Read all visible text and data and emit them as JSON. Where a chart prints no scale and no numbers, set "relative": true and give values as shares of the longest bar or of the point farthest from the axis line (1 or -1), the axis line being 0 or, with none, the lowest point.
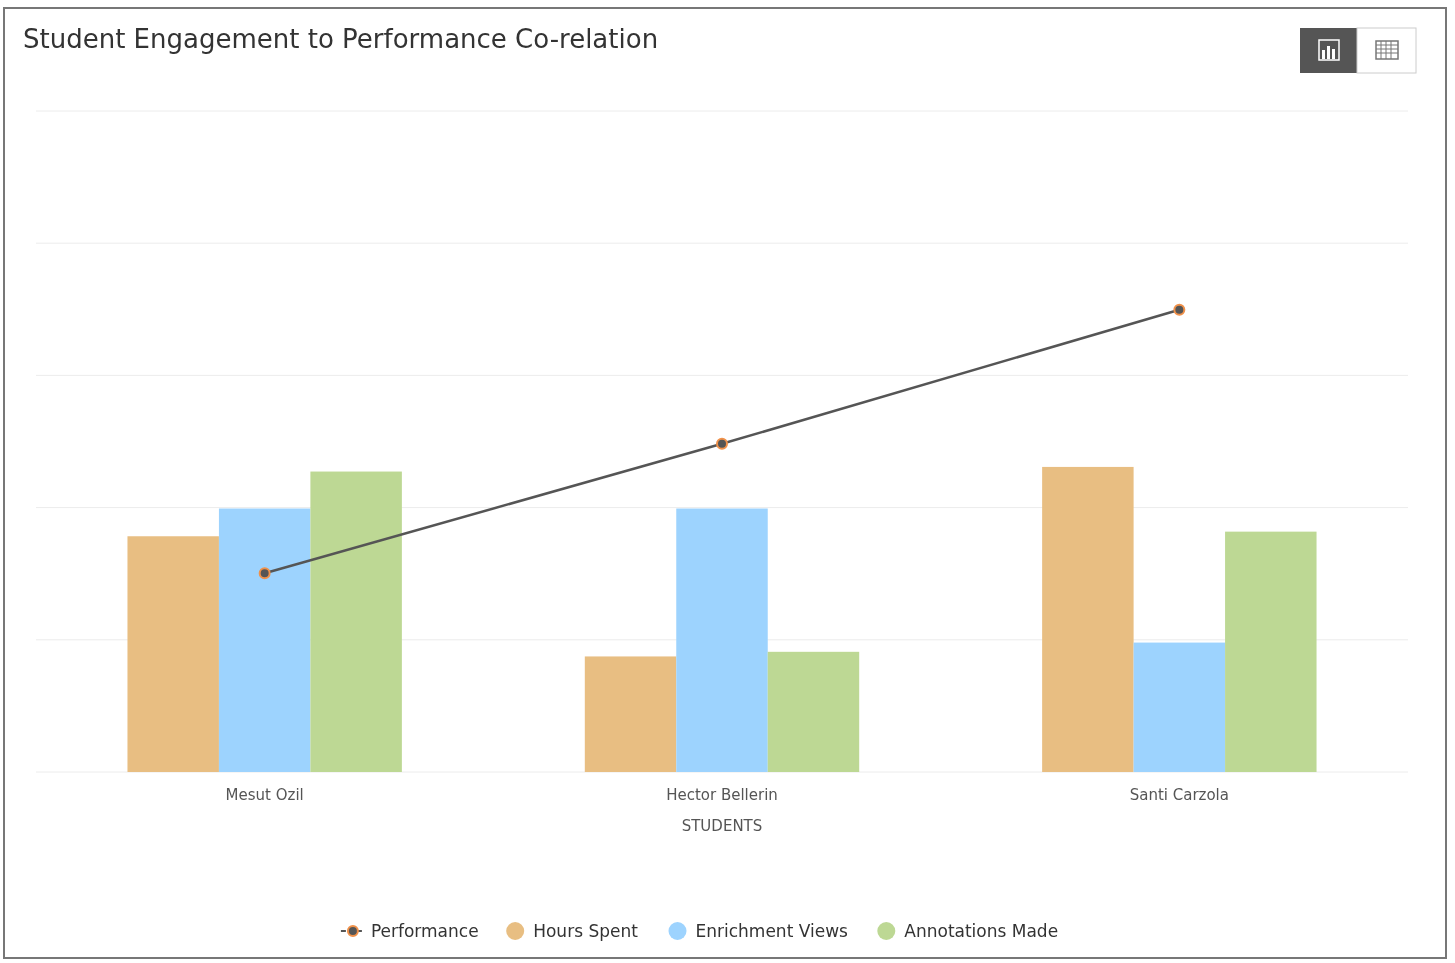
{
  "chart_data": {
    "type": "bar",
    "title": "Student Engagement to Performance Co-relation",
    "xlabel": "STUDENTS",
    "categories": [
      "Mesut Ozil",
      "Hector Bellerin",
      "Santi Carzola"
    ],
    "relative": true,
    "grid": "y",
    "legend": "bottom",
    "marker": "circle",
    "series": [
      {
        "name": "Performance",
        "type": "line",
        "color": "#555555",
        "values": [
          0.43,
          0.71,
          1
        ]
      },
      {
        "name": "Hours Spent",
        "color": "#e8be82",
        "values": [
          0.51,
          0.25,
          0.66
        ]
      },
      {
        "name": "Enrichment Views",
        "color": "#9dd3fe",
        "values": [
          0.57,
          0.57,
          0.28
        ]
      },
      {
        "name": "Annotations Made",
        "color": "#bdd894",
        "values": [
          0.65,
          0.26,
          0.52
        ]
      }
    ]
  }
}
